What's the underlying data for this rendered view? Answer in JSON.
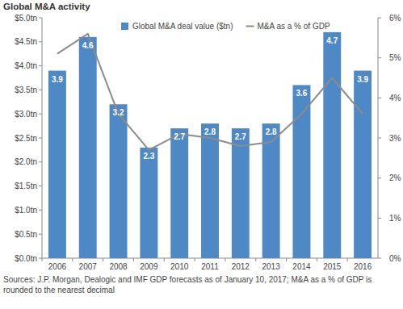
{
  "chart_data": {
    "type": "bar",
    "title": "Global M&A activity",
    "source": "Sources: J.P. Morgan, Dealogic and IMF GDP forecasts as of January 10, 2017; M&A as a % of GDP is rounded to the nearest decimal",
    "categories": [
      "2006",
      "2007",
      "2008",
      "2009",
      "2010",
      "2011",
      "2012",
      "2013",
      "2014",
      "2015",
      "2016"
    ],
    "series": [
      {
        "name": "Global M&A deal value ($tn)",
        "type": "bar",
        "color": "#4f89c5",
        "data_labels": true,
        "values": [
          3.9,
          4.6,
          3.2,
          2.3,
          2.7,
          2.8,
          2.7,
          2.8,
          3.6,
          4.7,
          3.9
        ]
      },
      {
        "name": "M&A as a % of GDP",
        "type": "line",
        "color": "#8c8c8c",
        "axis": "y2",
        "values": [
          5.1,
          5.6,
          3.6,
          2.7,
          3.1,
          3.0,
          2.8,
          2.9,
          3.6,
          4.5,
          3.6
        ]
      }
    ],
    "ylim": [
      0,
      5
    ],
    "yticks": [
      {
        "value": 0,
        "label": "$0.0tn"
      },
      {
        "value": 0.5,
        "label": "$0.5tn"
      },
      {
        "value": 1,
        "label": "$1.0tn"
      },
      {
        "value": 1.5,
        "label": "$1.5tn"
      },
      {
        "value": 2,
        "label": "$2.0tn"
      },
      {
        "value": 2.5,
        "label": "$2.5tn"
      },
      {
        "value": 3,
        "label": "$3.0tn"
      },
      {
        "value": 3.5,
        "label": "$3.5tn"
      },
      {
        "value": 4,
        "label": "$4.0tn"
      },
      {
        "value": 4.5,
        "label": "$4.5tn"
      },
      {
        "value": 5,
        "label": "$5.0tn"
      }
    ],
    "y2lim": [
      0,
      6
    ],
    "y2ticks": [
      {
        "value": 0,
        "label": "0%"
      },
      {
        "value": 1,
        "label": "1%"
      },
      {
        "value": 2,
        "label": "2%"
      },
      {
        "value": 3,
        "label": "3%"
      },
      {
        "value": 4,
        "label": "4%"
      },
      {
        "value": 5,
        "label": "5%"
      },
      {
        "value": 6,
        "label": "6%"
      }
    ],
    "grid": false,
    "legend": "top"
  }
}
